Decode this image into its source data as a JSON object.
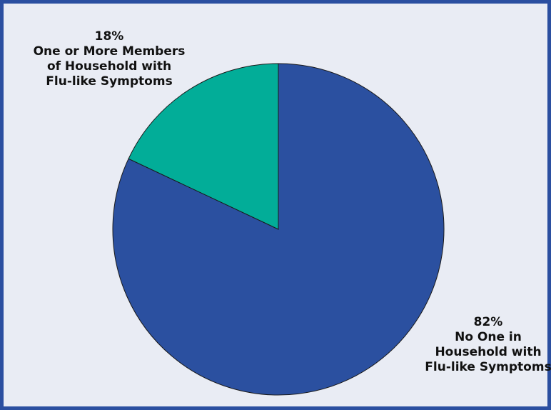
{
  "colors": {
    "frame_border": "#2b4fa0",
    "background": "#e9ecf4"
  },
  "chart_data": {
    "type": "pie",
    "title": "",
    "start_angle_deg": 0,
    "direction": "clockwise",
    "slices": [
      {
        "value": 82,
        "percent_label": "82%",
        "label_lines": [
          "No One in",
          "Household with",
          "Flu-like Symptoms"
        ],
        "color": "#2b50a0"
      },
      {
        "value": 18,
        "percent_label": "18%",
        "label_lines": [
          "One or More Members",
          "of Household with",
          "Flu-like Symptoms"
        ],
        "color": "#02ad98"
      }
    ]
  }
}
